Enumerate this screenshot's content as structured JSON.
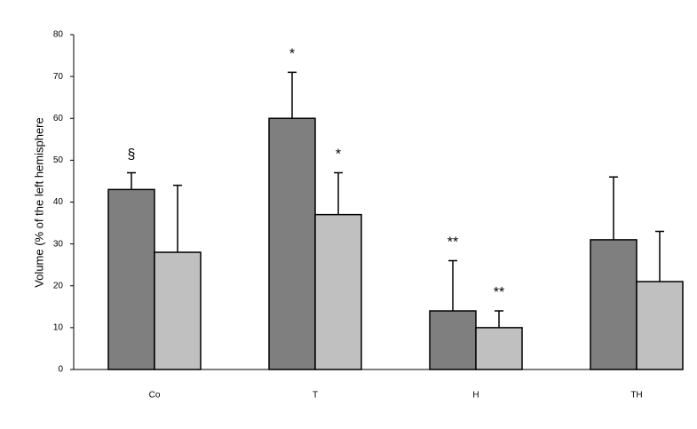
{
  "chart_data": {
    "type": "bar",
    "y_label": "Volume (% of the left hemisphere",
    "categories": [
      "Co",
      "T",
      "H",
      "TH"
    ],
    "series": [
      {
        "color": "#7f7f7f",
        "values": [
          43,
          60,
          14,
          31
        ],
        "errors": [
          4,
          11,
          12,
          15
        ],
        "annotations": [
          "§",
          "*",
          "**",
          null
        ]
      },
      {
        "color": "#c0c0c0",
        "values": [
          28,
          37,
          10,
          21
        ],
        "errors": [
          16,
          10,
          4,
          12
        ],
        "annotations": [
          null,
          "*",
          "**",
          null
        ]
      }
    ],
    "ylim": [
      0,
      80
    ],
    "yticks": [
      0,
      10,
      20,
      30,
      40,
      50,
      60,
      70,
      80
    ],
    "grid": false
  }
}
